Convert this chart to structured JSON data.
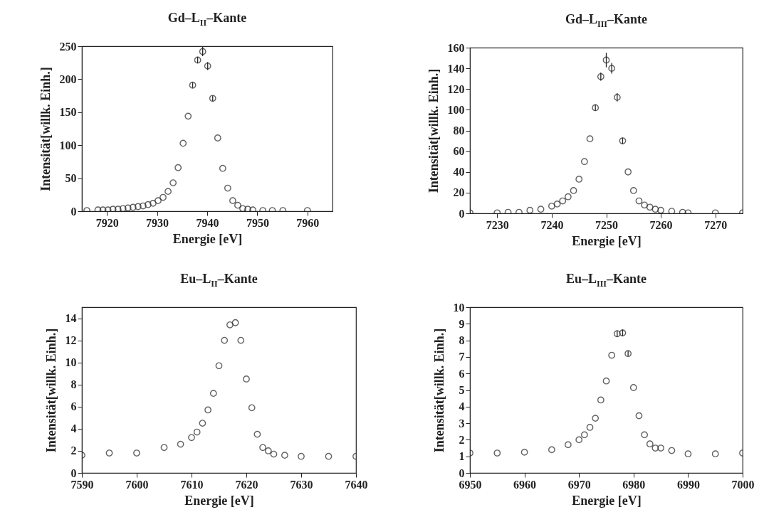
{
  "chart_data": [
    {
      "type": "scatter",
      "title": "Gd–L$_{II}$–Kante",
      "xlabel": "Energie [eV]",
      "ylabel": "Intensität[willk. Einh.]",
      "color": "#222222",
      "marker": "circle",
      "grid": false,
      "x": [
        7916,
        7918.2,
        7919.2,
        7920.2,
        7921.2,
        7922.2,
        7923.2,
        7924.2,
        7925.2,
        7926.2,
        7927.2,
        7928.2,
        7929.2,
        7930.2,
        7931.2,
        7932.2,
        7933.2,
        7934.2,
        7935.2,
        7936.2,
        7937.1,
        7938.1,
        7939.1,
        7940.1,
        7941.1,
        7942.1,
        7943.1,
        7944.1,
        7945.1,
        7946.1,
        7947.1,
        7948.1,
        7949.1,
        7951.1,
        7953,
        7955.1,
        7960
      ],
      "values": [
        1,
        2,
        2,
        2,
        3,
        3,
        4,
        5,
        6,
        7,
        8,
        10,
        12,
        16,
        21,
        30,
        43,
        66,
        103,
        144,
        191,
        229,
        242,
        220,
        171,
        111,
        65,
        35,
        16,
        9,
        4,
        3,
        2,
        1,
        1,
        1,
        1
      ],
      "errors": [
        null,
        null,
        null,
        null,
        null,
        null,
        null,
        null,
        null,
        null,
        null,
        null,
        null,
        null,
        null,
        null,
        null,
        null,
        null,
        null,
        4,
        5,
        7,
        6,
        4,
        null,
        null,
        null,
        null,
        null,
        null,
        null,
        null,
        null,
        null,
        null,
        null
      ],
      "xlim": [
        7915,
        7965
      ],
      "xticks": [
        7920,
        7930,
        7940,
        7950,
        7960
      ],
      "ylim": [
        0,
        250
      ],
      "yticks": [
        0,
        50,
        100,
        150,
        200,
        250
      ]
    },
    {
      "type": "scatter",
      "title": "Gd–L$_{III}$–Kante",
      "xlabel": "Energie [eV]",
      "ylabel": "Intensität[willk. Einh.]",
      "color": "#222222",
      "marker": "circle",
      "grid": false,
      "x": [
        7225,
        7230,
        7232,
        7234,
        7236,
        7238,
        7240,
        7241,
        7242,
        7243,
        7244,
        7245,
        7246,
        7247,
        7248,
        7249,
        7250,
        7251,
        7252,
        7253,
        7254,
        7255,
        7256,
        7257,
        7258,
        7259,
        7260,
        7262,
        7264,
        7265,
        7270,
        7275
      ],
      "values": [
        0.5,
        0.5,
        1,
        1,
        3,
        4,
        7,
        9,
        12,
        16,
        22,
        33,
        50,
        72,
        102,
        132,
        148,
        140,
        112,
        70,
        40,
        22,
        12,
        8,
        6,
        4,
        3,
        2,
        1,
        0.5,
        0.5,
        0.5
      ],
      "errors": [
        null,
        null,
        null,
        null,
        null,
        null,
        null,
        null,
        null,
        null,
        null,
        null,
        null,
        null,
        3,
        4,
        7,
        5,
        4,
        3,
        null,
        null,
        null,
        null,
        null,
        null,
        null,
        null,
        null,
        null,
        null,
        null
      ],
      "xlim": [
        7225,
        7275
      ],
      "xticks": [
        7230,
        7240,
        7250,
        7260,
        7270
      ],
      "ylim": [
        0,
        160
      ],
      "yticks": [
        0,
        20,
        40,
        60,
        80,
        100,
        120,
        140,
        160
      ]
    },
    {
      "type": "scatter",
      "title": "Eu–L$_{II}$–Kante",
      "xlabel": "Energie [eV]",
      "ylabel": "Intensität[willk. Einh.]",
      "color": "#222222",
      "marker": "circle",
      "grid": false,
      "x": [
        7590,
        7595,
        7600,
        7605,
        7608,
        7610,
        7611,
        7612,
        7613,
        7614,
        7615,
        7616,
        7617,
        7618,
        7619,
        7620,
        7621,
        7622,
        7623,
        7624,
        7625,
        7627,
        7630,
        7635,
        7640
      ],
      "values": [
        1.6,
        1.8,
        1.8,
        2.3,
        2.6,
        3.2,
        3.7,
        4.5,
        5.7,
        7.2,
        9.7,
        12,
        13.4,
        13.6,
        12,
        8.5,
        5.9,
        3.5,
        2.3,
        2,
        1.7,
        1.6,
        1.5,
        1.5,
        1.5
      ],
      "xlim": [
        7590,
        7640
      ],
      "xticks": [
        7590,
        7600,
        7610,
        7620,
        7630,
        7640
      ],
      "ylim": [
        0,
        15
      ],
      "yticks": [
        0,
        2,
        4,
        6,
        8,
        10,
        12,
        14
      ]
    },
    {
      "type": "scatter",
      "title": "Eu–L$_{III}$–Kante",
      "xlabel": "Energie [eV]",
      "ylabel": "Intensität[willk. Einh.]",
      "color": "#222222",
      "marker": "circle",
      "grid": false,
      "x": [
        6950,
        6955,
        6960,
        6965,
        6968,
        6970,
        6971,
        6972,
        6973,
        6974,
        6975,
        6976,
        6977,
        6978,
        6979,
        6980,
        6981,
        6982,
        6983,
        6984,
        6985,
        6987,
        6990,
        6995,
        7000
      ],
      "values": [
        1.2,
        1.2,
        1.25,
        1.4,
        1.7,
        2,
        2.3,
        2.75,
        3.3,
        4.4,
        5.55,
        7.1,
        8.4,
        8.45,
        7.2,
        5.15,
        3.45,
        2.3,
        1.75,
        1.5,
        1.5,
        1.35,
        1.15,
        1.15,
        1.2
      ],
      "errors": [
        null,
        null,
        null,
        null,
        null,
        null,
        null,
        null,
        null,
        null,
        null,
        null,
        0.2,
        0.2,
        0.15,
        null,
        null,
        null,
        null,
        null,
        null,
        null,
        null,
        null,
        null
      ],
      "xlim": [
        6950,
        7000
      ],
      "xticks": [
        6950,
        6960,
        6970,
        6980,
        6990,
        7000
      ],
      "ylim": [
        0,
        10
      ],
      "yticks": [
        0,
        1,
        2,
        3,
        4,
        5,
        6,
        7,
        8,
        9,
        10
      ]
    }
  ]
}
